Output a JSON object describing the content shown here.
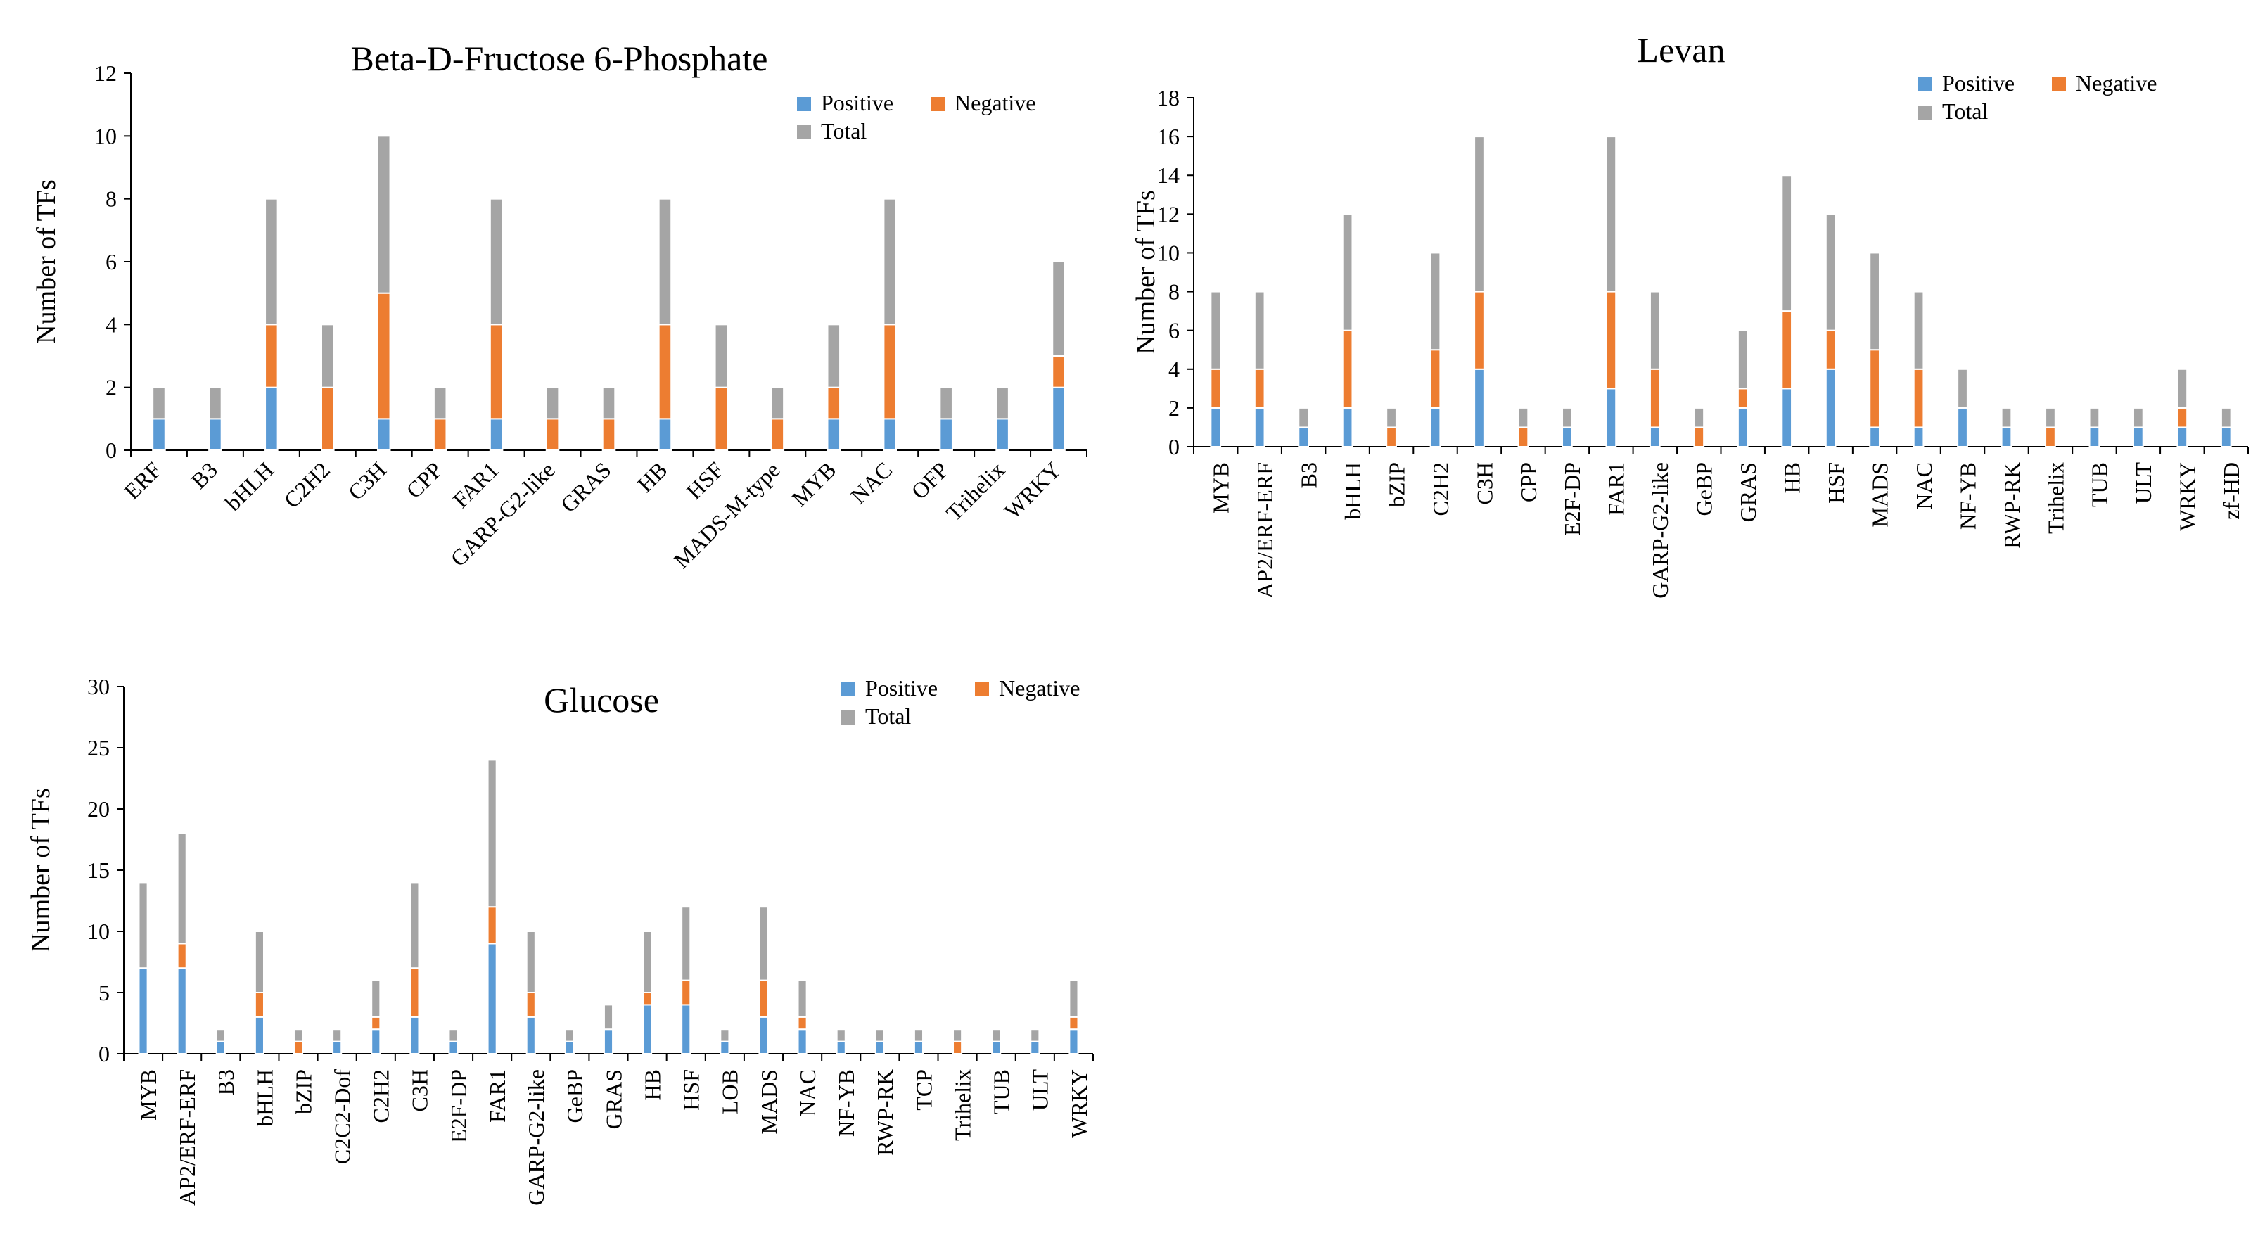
{
  "colors": {
    "positive": "#5B9BD5",
    "negative": "#ED7D31",
    "total": "#A5A5A5",
    "axis": "#000000"
  },
  "chart_data": [
    {
      "type": "bar",
      "title": "Beta-D-Fructose 6-Phosphate",
      "ylabel": "Number of TFs",
      "xlabel": "",
      "ylim": [
        0,
        12
      ],
      "yticks": [
        0,
        2,
        4,
        6,
        8,
        10,
        12
      ],
      "stacked": true,
      "legend_position": "top-right",
      "legend": [
        "Positive",
        "Negative",
        "Total"
      ],
      "categories": [
        "ERF",
        "B3",
        "bHLH",
        "C2H2",
        "C3H",
        "CPP",
        "FAR1",
        "GARP-G2-like",
        "GRAS",
        "HB",
        "HSF",
        "MADS-M-type",
        "MYB",
        "NAC",
        "OFP",
        "Trihelix",
        "WRKY"
      ],
      "series": [
        {
          "name": "Positive",
          "values": [
            1,
            1,
            2,
            0,
            1,
            0,
            1,
            0,
            0,
            1,
            0,
            0,
            1,
            1,
            1,
            1,
            2
          ]
        },
        {
          "name": "Negative",
          "values": [
            0,
            0,
            2,
            2,
            4,
            1,
            3,
            1,
            1,
            3,
            2,
            1,
            1,
            3,
            0,
            0,
            1
          ]
        },
        {
          "name": "Total",
          "values": [
            1,
            1,
            4,
            2,
            5,
            1,
            4,
            1,
            1,
            4,
            2,
            1,
            2,
            4,
            1,
            1,
            3
          ]
        }
      ]
    },
    {
      "type": "bar",
      "title": "Levan",
      "ylabel": "Number of TFs",
      "xlabel": "",
      "ylim": [
        0,
        18
      ],
      "yticks": [
        0,
        2,
        4,
        6,
        8,
        10,
        12,
        14,
        16,
        18
      ],
      "stacked": true,
      "legend_position": "top-right",
      "legend": [
        "Positive",
        "Negative",
        "Total"
      ],
      "categories": [
        "MYB",
        "AP2/ERF-ERF",
        "B3",
        "bHLH",
        "bZIP",
        "C2H2",
        "C3H",
        "CPP",
        "E2F-DP",
        "FAR1",
        "GARP-G2-like",
        "GeBP",
        "GRAS",
        "HB",
        "HSF",
        "MADS",
        "NAC",
        "NF-YB",
        "RWP-RK",
        "Trihelix",
        "TUB",
        "ULT",
        "WRKY",
        "zf-HD"
      ],
      "series": [
        {
          "name": "Positive",
          "values": [
            2,
            2,
            1,
            2,
            0,
            2,
            4,
            0,
            1,
            3,
            1,
            0,
            2,
            3,
            4,
            1,
            1,
            2,
            1,
            0,
            1,
            1,
            1,
            1
          ]
        },
        {
          "name": "Negative",
          "values": [
            2,
            2,
            0,
            4,
            1,
            3,
            4,
            1,
            0,
            5,
            3,
            1,
            1,
            4,
            2,
            4,
            3,
            0,
            0,
            1,
            0,
            0,
            1,
            0
          ]
        },
        {
          "name": "Total",
          "values": [
            4,
            4,
            1,
            6,
            1,
            5,
            8,
            1,
            1,
            8,
            4,
            1,
            3,
            7,
            6,
            5,
            4,
            2,
            1,
            1,
            1,
            1,
            2,
            1
          ]
        }
      ]
    },
    {
      "type": "bar",
      "title": "Glucose",
      "ylabel": "Number of TFs",
      "xlabel": "",
      "ylim": [
        0,
        30
      ],
      "yticks": [
        0,
        5,
        10,
        15,
        20,
        25,
        30
      ],
      "stacked": true,
      "legend_position": "top-right",
      "legend": [
        "Positive",
        "Negative",
        "Total"
      ],
      "categories": [
        "MYB",
        "AP2/ERF-ERF",
        "B3",
        "bHLH",
        "bZIP",
        "C2C2-Dof",
        "C2H2",
        "C3H",
        "E2F-DP",
        "FAR1",
        "GARP-G2-like",
        "GeBP",
        "GRAS",
        "HB",
        "HSF",
        "LOB",
        "MADS",
        "NAC",
        "NF-YB",
        "RWP-RK",
        "TCP",
        "Trihelix",
        "TUB",
        "ULT",
        "WRKY"
      ],
      "series": [
        {
          "name": "Positive",
          "values": [
            7,
            7,
            1,
            3,
            0,
            1,
            2,
            3,
            1,
            9,
            3,
            1,
            2,
            4,
            4,
            1,
            3,
            2,
            1,
            1,
            1,
            0,
            1,
            1,
            2
          ]
        },
        {
          "name": "Negative",
          "values": [
            0,
            2,
            0,
            2,
            1,
            0,
            1,
            4,
            0,
            3,
            2,
            0,
            0,
            1,
            2,
            0,
            3,
            1,
            0,
            0,
            0,
            1,
            0,
            0,
            1
          ]
        },
        {
          "name": "Total",
          "values": [
            7,
            9,
            1,
            5,
            1,
            1,
            3,
            7,
            1,
            12,
            5,
            1,
            2,
            5,
            6,
            1,
            6,
            3,
            1,
            1,
            1,
            1,
            1,
            1,
            3
          ]
        }
      ]
    }
  ]
}
